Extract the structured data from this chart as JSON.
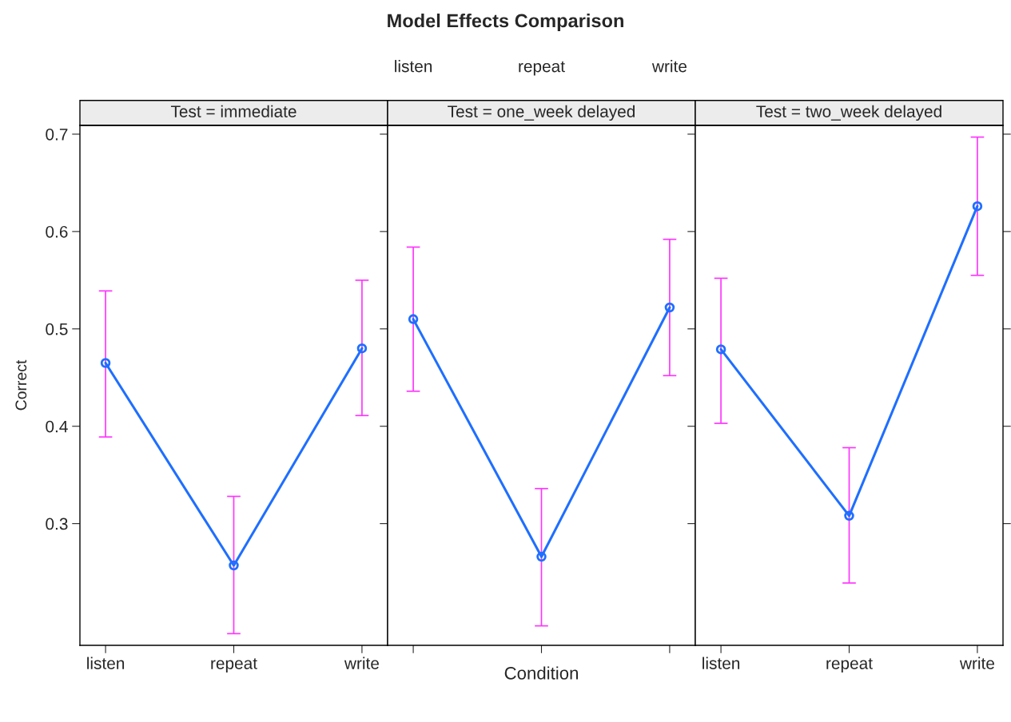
{
  "chart_data": [
    {
      "type": "line",
      "subtitle": "Test = immediate",
      "ylabel": "Correct",
      "categories": [
        "listen",
        "repeat",
        "write"
      ],
      "ylim": [
        0.175,
        0.709
      ],
      "yticks": [
        0.3,
        0.4,
        0.5,
        0.6,
        0.7
      ],
      "marker": "circle",
      "line_style": "solid",
      "series": [
        {
          "color": "#1f6fff",
          "values": [
            0.465,
            0.257,
            0.48
          ],
          "errors": [
            [
              0.389,
              0.539
            ],
            [
              0.187,
              0.328
            ],
            [
              0.411,
              0.55
            ]
          ]
        }
      ]
    },
    {
      "type": "line",
      "title": "Model Effects Comparison",
      "subtitle": "Test = one_week delayed",
      "xlabel": "Condition",
      "categories": [
        "listen",
        "repeat",
        "write"
      ],
      "ylim": [
        0.175,
        0.709
      ],
      "yticks": [
        0.3,
        0.4,
        0.5,
        0.6,
        0.7
      ],
      "tick_labels": "x",
      "marker": "circle",
      "line_style": "solid",
      "series": [
        {
          "color": "#1f6fff",
          "values": [
            0.51,
            0.266,
            0.522
          ],
          "errors": [
            [
              0.436,
              0.584
            ],
            [
              0.195,
              0.336
            ],
            [
              0.452,
              0.592
            ]
          ]
        }
      ]
    },
    {
      "type": "line",
      "subtitle": "Test = two_week delayed",
      "categories": [
        "listen",
        "repeat",
        "write"
      ],
      "ylim": [
        0.175,
        0.709
      ],
      "yticks": [
        0.3,
        0.4,
        0.5,
        0.6,
        0.7
      ],
      "tick_labels": "x",
      "marker": "circle",
      "line_style": "solid",
      "series": [
        {
          "color": "#1f6fff",
          "values": [
            0.479,
            0.308,
            0.626
          ],
          "errors": [
            [
              0.403,
              0.552
            ],
            [
              0.239,
              0.378
            ],
            [
              0.555,
              0.697
            ]
          ]
        }
      ]
    }
  ]
}
